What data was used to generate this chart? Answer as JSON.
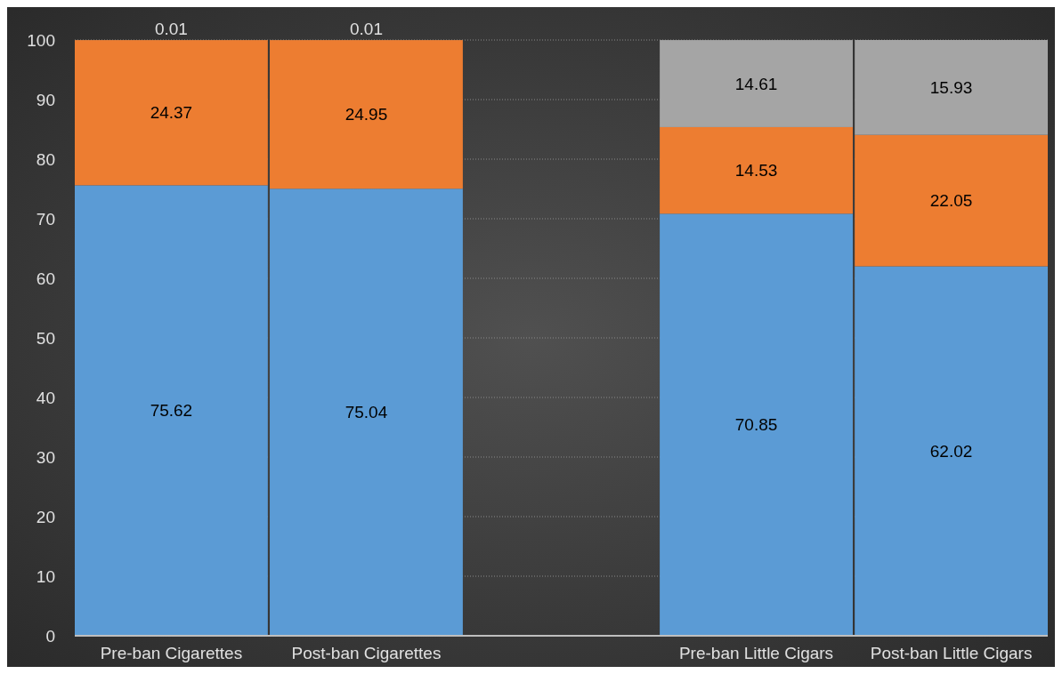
{
  "chart_data": {
    "type": "bar",
    "stacked": true,
    "categories": [
      "Pre-ban Cigarettes",
      "Post-ban Cigarettes",
      null,
      "Pre-ban Little Cigars",
      "Post-ban Little Cigars"
    ],
    "series": [
      {
        "color": "#5b9bd5",
        "values": [
          75.62,
          75.04,
          null,
          70.85,
          62.02
        ]
      },
      {
        "color": "#ed7d31",
        "values": [
          24.37,
          24.95,
          null,
          14.53,
          22.05
        ]
      },
      {
        "color": "#a5a5a5",
        "values": [
          0.01,
          0.01,
          null,
          14.61,
          15.93
        ]
      }
    ],
    "ylim": [
      0,
      100
    ],
    "yticks": [
      0,
      10,
      20,
      30,
      40,
      50,
      60,
      70,
      80,
      90,
      100
    ],
    "grid": "y",
    "data_labels": true
  }
}
